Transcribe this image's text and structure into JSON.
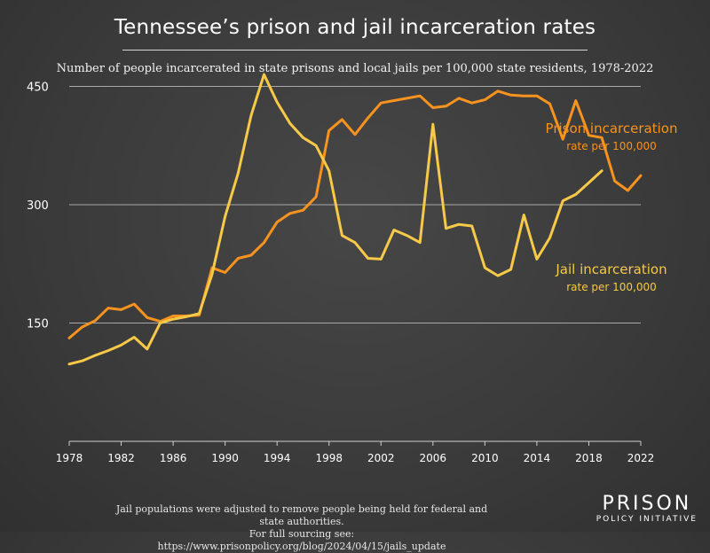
{
  "header": {
    "title": "Tennessee’s prison and jail incarceration rates",
    "subtitle": "Number of people incarcerated in state prisons and local jails per 100,000 state residents, 1978-2022"
  },
  "footnote": {
    "line1": "Jail populations were adjusted to remove people being held for federal and state authorities.",
    "line2": "For full sourcing see: https://www.prisonpolicy.org/blog/2024/04/15/jails_update"
  },
  "logo": {
    "line1": "PRISON",
    "line2": "POLICY INITIATIVE"
  },
  "chart_data": {
    "type": "line",
    "title": "Tennessee’s prison and jail incarceration rates",
    "xlim": [
      1978,
      2022
    ],
    "ylim": [
      0,
      500
    ],
    "x_ticks": [
      "1978",
      "1982",
      "1986",
      "1990",
      "1994",
      "1998",
      "2002",
      "2006",
      "2010",
      "2014",
      "2018",
      "2022"
    ],
    "y_ticks": [
      "150",
      "300",
      "450"
    ],
    "grid": "horizontal",
    "series": [
      {
        "name": "Prison incarceration",
        "sublabel": "rate per 100,000",
        "color": "#f7931e",
        "x": [
          1978,
          1979,
          1980,
          1981,
          1982,
          1983,
          1984,
          1985,
          1986,
          1987,
          1988,
          1989,
          1990,
          1991,
          1992,
          1993,
          1994,
          1995,
          1996,
          1997,
          1998,
          1999,
          2000,
          2001,
          2002,
          2003,
          2004,
          2005,
          2006,
          2007,
          2008,
          2009,
          2010,
          2011,
          2012,
          2013,
          2014,
          2015,
          2016,
          2017,
          2018,
          2019,
          2020,
          2021,
          2022
        ],
        "values": [
          131,
          145,
          153,
          169,
          167,
          174,
          157,
          152,
          159,
          159,
          160,
          220,
          214,
          232,
          236,
          252,
          278,
          289,
          293,
          310,
          394,
          408,
          389,
          410,
          429,
          432,
          435,
          438,
          423,
          425,
          435,
          429,
          433,
          444,
          439,
          438,
          438,
          428,
          383,
          432,
          388,
          385,
          330,
          318,
          337
        ]
      },
      {
        "name": "Jail incarceration",
        "sublabel": "rate per 100,000",
        "color": "#f7c948",
        "x": [
          1978,
          1979,
          1980,
          1981,
          1982,
          1983,
          1984,
          1985,
          1986,
          1987,
          1988,
          1989,
          1990,
          1991,
          1992,
          1993,
          1994,
          1995,
          1996,
          1997,
          1998,
          1999,
          2000,
          2001,
          2002,
          2003,
          2004,
          2005,
          2006,
          2007,
          2008,
          2009,
          2010,
          2011,
          2012,
          2013,
          2014,
          2015,
          2016,
          2017,
          2018,
          2019
        ],
        "values": [
          98,
          102,
          109,
          115,
          122,
          132,
          117,
          150,
          155,
          158,
          162,
          212,
          285,
          340,
          413,
          465,
          430,
          403,
          385,
          375,
          343,
          261,
          252,
          232,
          231,
          268,
          261,
          252,
          402,
          270,
          275,
          273,
          220,
          210,
          218,
          287,
          231,
          258,
          305,
          313,
          328,
          343
        ]
      }
    ]
  }
}
